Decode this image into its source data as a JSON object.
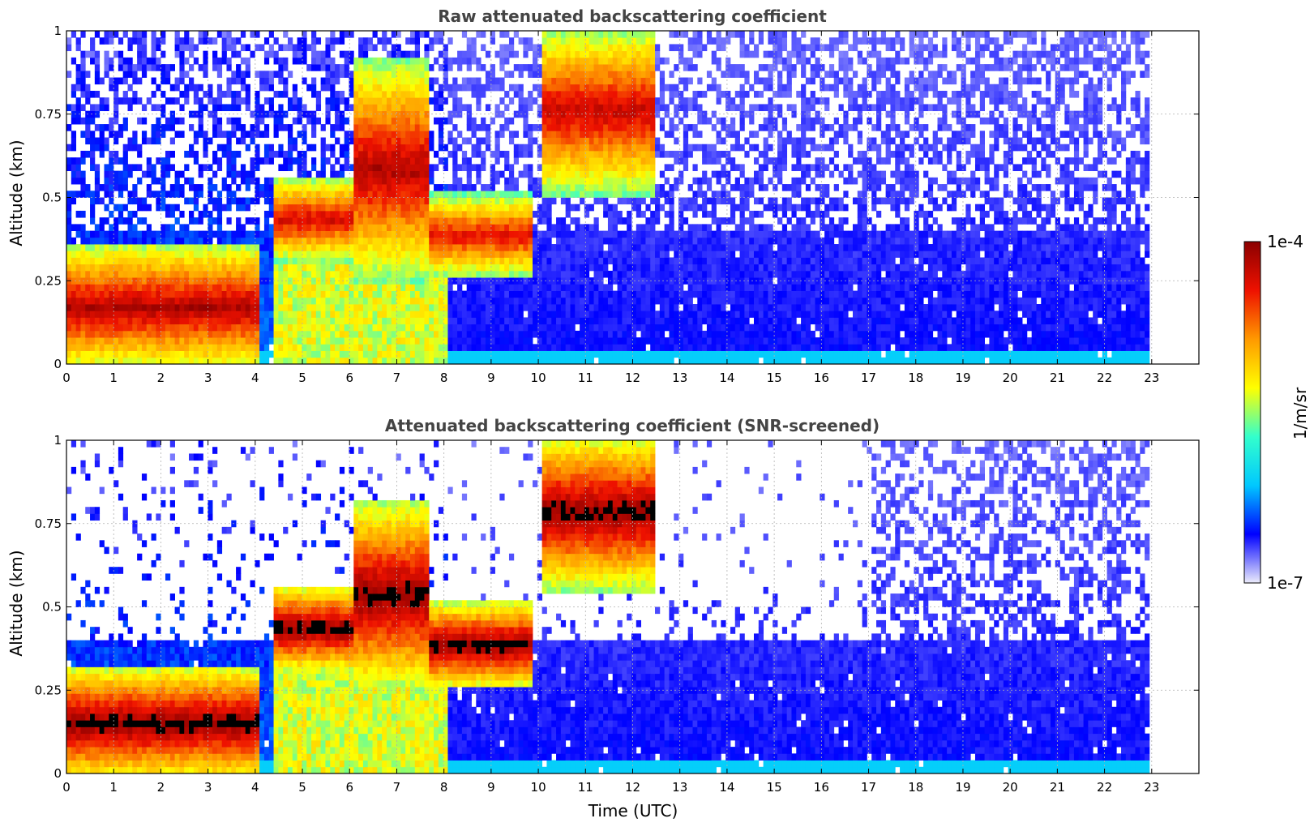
{
  "chart_data": [
    {
      "type": "heatmap",
      "title": "Raw attenuated backscattering coefficient",
      "xlabel": "",
      "ylabel": "Altitude (km)",
      "xlim": [
        0,
        24
      ],
      "ylim": [
        0,
        1
      ],
      "x_ticks": [
        "0",
        "1",
        "2",
        "3",
        "4",
        "5",
        "6",
        "7",
        "8",
        "9",
        "10",
        "11",
        "12",
        "13",
        "14",
        "15",
        "16",
        "17",
        "18",
        "19",
        "20",
        "21",
        "22",
        "23"
      ],
      "y_ticks": [
        "0",
        "0.25",
        "0.5",
        "0.75",
        "1"
      ],
      "y_tick_values": [
        0,
        0.25,
        0.5,
        0.75,
        1
      ],
      "grid": true,
      "data_end_time": 22.95,
      "features": [
        {
          "t_start": 0.0,
          "t_end": 4.0,
          "layer_bottom": 0.02,
          "layer_top": 0.3,
          "level": 0.95
        },
        {
          "t_start": 4.3,
          "t_end": 6.0,
          "layer_bottom": 0.35,
          "layer_top": 0.5,
          "level": 0.9
        },
        {
          "t_start": 6.0,
          "t_end": 7.6,
          "layer_bottom": 0.3,
          "layer_top": 0.85,
          "level": 0.95
        },
        {
          "t_start": 7.6,
          "t_end": 9.8,
          "layer_bottom": 0.3,
          "layer_top": 0.45,
          "level": 0.88
        },
        {
          "t_start": 10.0,
          "t_end": 12.4,
          "layer_bottom": 0.55,
          "layer_top": 0.95,
          "level": 0.92
        }
      ]
    },
    {
      "type": "heatmap",
      "title": "Attenuated backscattering coefficient (SNR-screened)",
      "xlabel": "Time (UTC)",
      "ylabel": "Altitude (km)",
      "xlim": [
        0,
        24
      ],
      "ylim": [
        0,
        1
      ],
      "x_ticks": [
        "0",
        "1",
        "2",
        "3",
        "4",
        "5",
        "6",
        "7",
        "8",
        "9",
        "10",
        "11",
        "12",
        "13",
        "14",
        "15",
        "16",
        "17",
        "18",
        "19",
        "20",
        "21",
        "22",
        "23"
      ],
      "y_ticks": [
        "0",
        "0.25",
        "0.5",
        "0.75",
        "1"
      ],
      "y_tick_values": [
        0,
        0.25,
        0.5,
        0.75,
        1
      ],
      "grid": true,
      "data_end_time": 22.95,
      "features": [
        {
          "t_start": 0.0,
          "t_end": 4.0,
          "layer_bottom": 0.02,
          "layer_top": 0.26,
          "level": 1.0
        },
        {
          "t_start": 4.3,
          "t_end": 6.0,
          "layer_bottom": 0.35,
          "layer_top": 0.5,
          "level": 1.0
        },
        {
          "t_start": 6.0,
          "t_end": 7.6,
          "layer_bottom": 0.3,
          "layer_top": 0.75,
          "level": 1.0
        },
        {
          "t_start": 7.6,
          "t_end": 9.8,
          "layer_bottom": 0.3,
          "layer_top": 0.45,
          "level": 1.0
        },
        {
          "t_start": 10.0,
          "t_end": 12.4,
          "layer_bottom": 0.6,
          "layer_top": 0.95,
          "level": 1.0
        }
      ]
    }
  ],
  "colorbar": {
    "label": "1/m/sr",
    "min_label": "1e-7",
    "max_label": "1e-4",
    "scale": "log",
    "colors": [
      "#ececfb",
      "#0000ff",
      "#00c8ff",
      "#33ffcc",
      "#ffff00",
      "#ff9900",
      "#ee1100",
      "#8b0000"
    ]
  }
}
